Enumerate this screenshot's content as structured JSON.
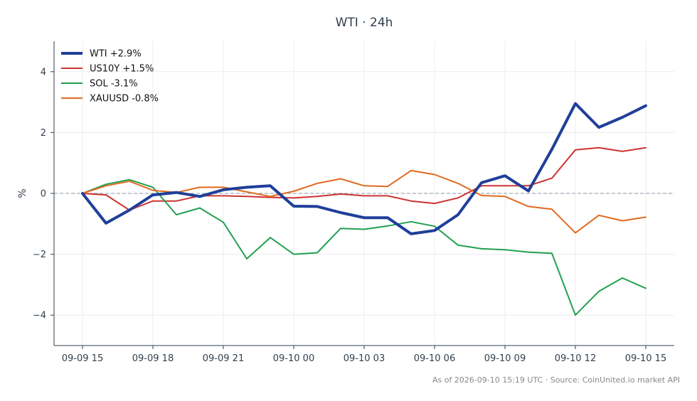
{
  "chart_data": {
    "type": "line",
    "title": "WTI · 24h",
    "xlabel": "",
    "ylabel": "%",
    "ylim": [
      -5,
      5
    ],
    "yticks": [
      -4,
      -2,
      0,
      2,
      4
    ],
    "ytick_labels": [
      "−4",
      "−2",
      "0",
      "2",
      "4"
    ],
    "x_start": "09-09 15:00",
    "x_step_hours": 1,
    "xtick_positions": [
      0,
      3,
      6,
      9,
      12,
      15,
      18,
      21,
      24
    ],
    "xtick_labels": [
      "09-09 15",
      "09-09 18",
      "09-09 21",
      "09-10 00",
      "09-10 03",
      "09-10 06",
      "09-10 09",
      "09-10 12",
      "09-10 15"
    ],
    "grid": true,
    "zero_line": true,
    "legend_position": "top-left",
    "series": [
      {
        "name": "WTI +2.9%",
        "color": "#1f3f99",
        "width": 4,
        "values": [
          0,
          -0.98,
          -0.55,
          -0.05,
          0.03,
          -0.1,
          0.12,
          0.2,
          0.25,
          -0.42,
          -0.43,
          -0.63,
          -0.8,
          -0.8,
          -1.33,
          -1.22,
          -0.7,
          0.35,
          0.58,
          0.08,
          1.45,
          2.95,
          2.17,
          2.5,
          2.88
        ]
      },
      {
        "name": "US10Y +1.5%",
        "color": "#cc3333",
        "width": 2,
        "values": [
          0,
          -0.05,
          -0.55,
          -0.25,
          -0.25,
          -0.08,
          -0.08,
          -0.1,
          -0.13,
          -0.15,
          -0.1,
          -0.02,
          -0.08,
          -0.08,
          -0.25,
          -0.33,
          -0.15,
          0.25,
          0.25,
          0.25,
          0.5,
          1.43,
          1.5,
          1.38,
          1.5
        ]
      },
      {
        "name": "SOL -3.1%",
        "color": "#22a050",
        "width": 2,
        "values": [
          0,
          0.3,
          0.45,
          0.2,
          -0.7,
          -0.48,
          -0.95,
          -2.15,
          -1.45,
          -2.0,
          -1.95,
          -1.15,
          -1.18,
          -1.07,
          -0.93,
          -1.08,
          -1.7,
          -1.82,
          -1.85,
          -1.93,
          -1.97,
          -4.0,
          -3.22,
          -2.78,
          -3.12
        ]
      },
      {
        "name": "XAUUSD -0.8%",
        "color": "#e06a20",
        "width": 2,
        "values": [
          0,
          0.25,
          0.4,
          0.1,
          0.03,
          0.2,
          0.2,
          0.05,
          -0.1,
          0.07,
          0.33,
          0.48,
          0.25,
          0.23,
          0.75,
          0.62,
          0.33,
          -0.07,
          -0.1,
          -0.43,
          -0.52,
          -1.3,
          -0.72,
          -0.9,
          -0.78
        ]
      }
    ],
    "footer": "As of 2026-09-10 15:19 UTC · Source: CoinUnited.io market API"
  }
}
